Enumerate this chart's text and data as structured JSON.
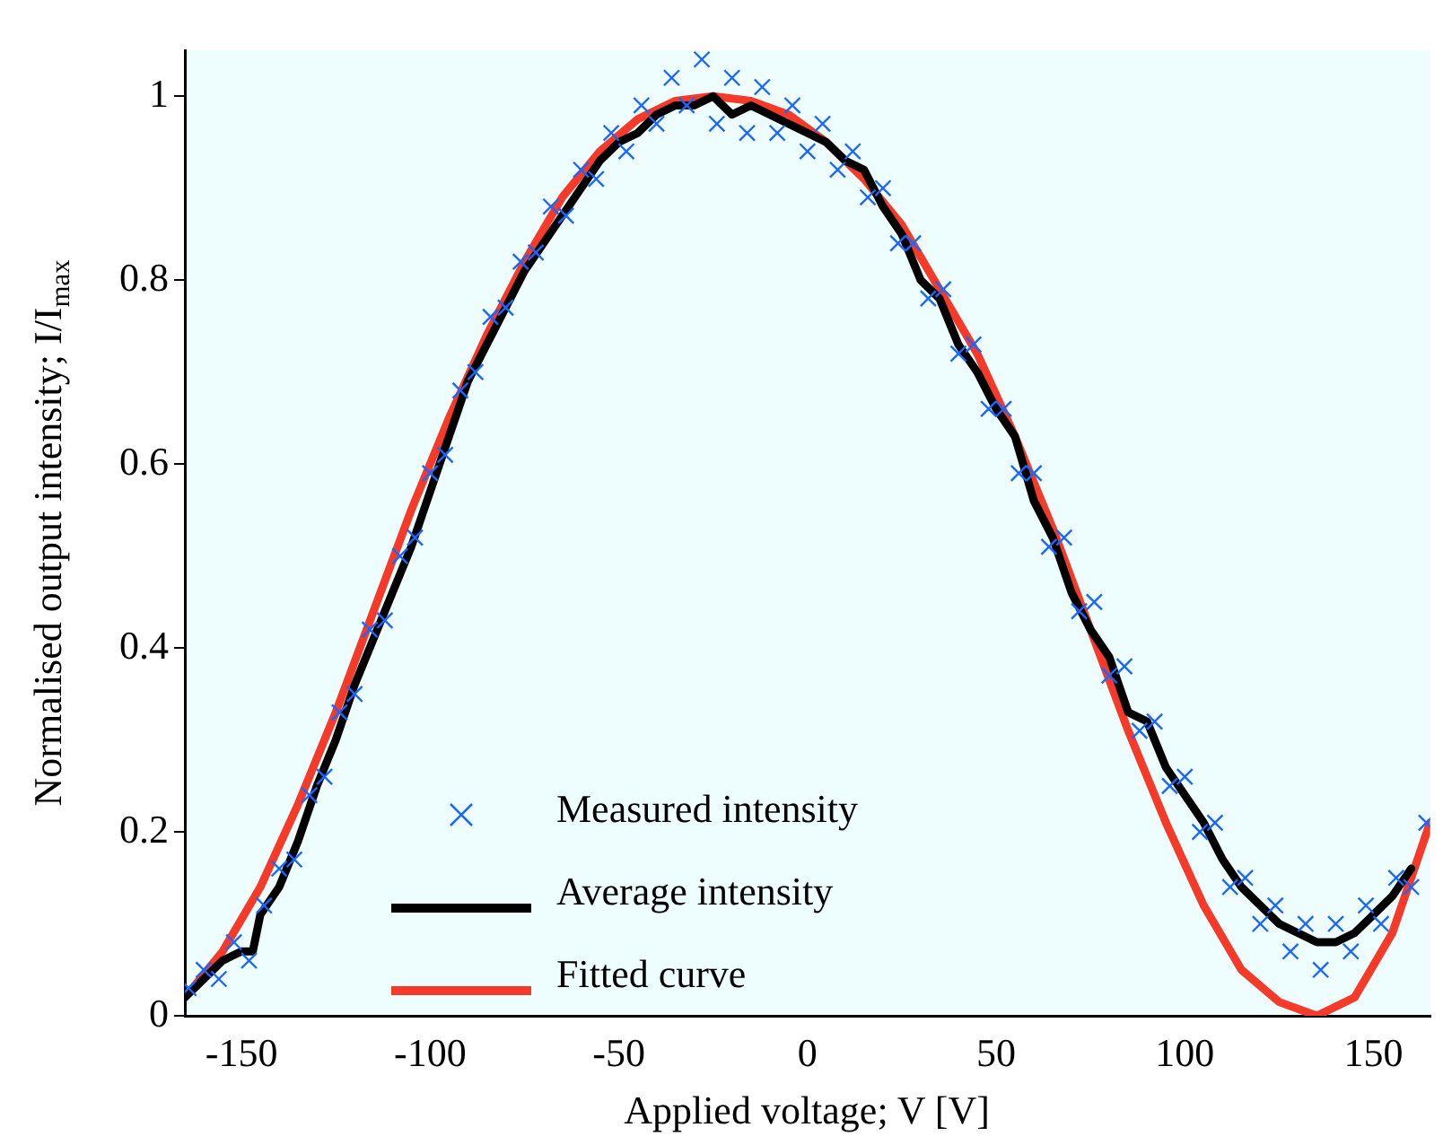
{
  "chart_data": {
    "type": "scatter",
    "xlabel": "Applied voltage; V [V]",
    "ylabel": "Normalised output intensity; I/I$_{max}$",
    "xlim": [
      -165,
      165
    ],
    "ylim": [
      0,
      1.05
    ],
    "xticks": [
      -150,
      -100,
      -50,
      0,
      50,
      100,
      150
    ],
    "yticks": [
      0,
      0.2,
      0.4,
      0.6,
      0.8,
      1
    ],
    "grid": false,
    "legend": "bottom left",
    "series": [
      {
        "name": "Measured intensity",
        "marker": "cross",
        "color": "#1a66ff",
        "x": [
          -164,
          -160,
          -156,
          -152,
          -148,
          -144,
          -140,
          -136,
          -132,
          -128,
          -124,
          -120,
          -116,
          -112,
          -108,
          -104,
          -100,
          -96,
          -92,
          -88,
          -84,
          -80,
          -76,
          -72,
          -68,
          -64,
          -60,
          -56,
          -52,
          -48,
          -44,
          -40,
          -36,
          -32,
          -28,
          -24,
          -20,
          -16,
          -12,
          -8,
          -4,
          0,
          4,
          8,
          12,
          16,
          20,
          24,
          28,
          32,
          36,
          40,
          44,
          48,
          52,
          56,
          60,
          64,
          68,
          72,
          76,
          80,
          84,
          88,
          92,
          96,
          100,
          104,
          108,
          112,
          116,
          120,
          124,
          128,
          132,
          136,
          140,
          144,
          148,
          152,
          156,
          160,
          164
        ],
        "values": [
          0.03,
          0.05,
          0.04,
          0.08,
          0.06,
          0.12,
          0.16,
          0.17,
          0.24,
          0.26,
          0.33,
          0.35,
          0.42,
          0.43,
          0.5,
          0.52,
          0.59,
          0.61,
          0.68,
          0.7,
          0.76,
          0.77,
          0.82,
          0.83,
          0.88,
          0.87,
          0.92,
          0.91,
          0.96,
          0.94,
          0.99,
          0.97,
          1.02,
          0.99,
          1.04,
          0.97,
          1.02,
          0.96,
          1.01,
          0.96,
          0.99,
          0.94,
          0.97,
          0.92,
          0.94,
          0.89,
          0.9,
          0.84,
          0.84,
          0.78,
          0.79,
          0.72,
          0.73,
          0.66,
          0.66,
          0.59,
          0.59,
          0.51,
          0.52,
          0.44,
          0.45,
          0.37,
          0.38,
          0.31,
          0.32,
          0.25,
          0.26,
          0.2,
          0.21,
          0.14,
          0.15,
          0.1,
          0.12,
          0.07,
          0.1,
          0.05,
          0.1,
          0.07,
          0.12,
          0.1,
          0.15,
          0.14,
          0.21
        ]
      },
      {
        "name": "Average intensity",
        "type": "line",
        "marker": "none",
        "line_style": "solid",
        "color": "#000000",
        "x": [
          -165,
          -160,
          -155,
          -150,
          -147,
          -145,
          -140,
          -135,
          -130,
          -125,
          -120,
          -115,
          -110,
          -105,
          -100,
          -95,
          -90,
          -85,
          -80,
          -75,
          -70,
          -65,
          -60,
          -55,
          -50,
          -45,
          -40,
          -35,
          -30,
          -25,
          -20,
          -15,
          -10,
          -5,
          0,
          5,
          10,
          15,
          20,
          25,
          30,
          35,
          40,
          45,
          50,
          55,
          60,
          65,
          70,
          75,
          80,
          85,
          90,
          95,
          100,
          105,
          110,
          115,
          120,
          125,
          130,
          135,
          140,
          145,
          150,
          155,
          160
        ],
        "values": [
          0.02,
          0.04,
          0.06,
          0.07,
          0.07,
          0.11,
          0.14,
          0.19,
          0.25,
          0.3,
          0.36,
          0.41,
          0.46,
          0.51,
          0.57,
          0.63,
          0.69,
          0.73,
          0.77,
          0.81,
          0.84,
          0.87,
          0.9,
          0.93,
          0.95,
          0.96,
          0.98,
          0.99,
          0.99,
          1.0,
          0.98,
          0.99,
          0.98,
          0.97,
          0.96,
          0.95,
          0.93,
          0.92,
          0.88,
          0.85,
          0.8,
          0.78,
          0.73,
          0.7,
          0.66,
          0.63,
          0.56,
          0.52,
          0.46,
          0.42,
          0.39,
          0.33,
          0.32,
          0.27,
          0.24,
          0.21,
          0.17,
          0.14,
          0.12,
          0.1,
          0.09,
          0.08,
          0.08,
          0.09,
          0.11,
          0.13,
          0.16
        ]
      },
      {
        "name": "Fitted curve",
        "type": "line",
        "marker": "none",
        "line_style": "solid",
        "color": "#f53a2a",
        "x": [
          -165,
          -155,
          -145,
          -135,
          -125,
          -115,
          -105,
          -95,
          -85,
          -75,
          -65,
          -55,
          -45,
          -35,
          -25,
          -15,
          -5,
          5,
          15,
          25,
          35,
          45,
          55,
          65,
          75,
          85,
          95,
          105,
          115,
          125,
          135,
          145,
          155,
          165
        ],
        "values": [
          0.02,
          0.07,
          0.14,
          0.23,
          0.33,
          0.44,
          0.55,
          0.65,
          0.74,
          0.82,
          0.89,
          0.94,
          0.975,
          0.995,
          1.0,
          0.995,
          0.98,
          0.95,
          0.91,
          0.86,
          0.79,
          0.72,
          0.63,
          0.53,
          0.42,
          0.31,
          0.21,
          0.12,
          0.05,
          0.015,
          0.0,
          0.02,
          0.09,
          0.21
        ]
      }
    ]
  }
}
